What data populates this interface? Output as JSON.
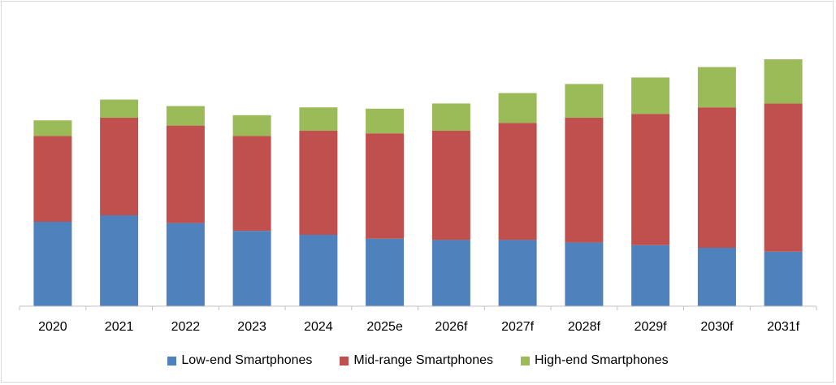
{
  "chart_data": {
    "type": "bar",
    "stacked": true,
    "title": "",
    "xlabel": "",
    "ylabel": "",
    "ylim": [
      0,
      100
    ],
    "categories": [
      "2020",
      "2021",
      "2022",
      "2023",
      "2024",
      "2025e",
      "2026f",
      "2027f",
      "2028f",
      "2029f",
      "2030f",
      "2031f"
    ],
    "series": [
      {
        "name": "Low-end Smartphones",
        "color": "#4f81bd",
        "values": [
          32.5,
          35.0,
          32.0,
          29.0,
          27.5,
          26.0,
          25.5,
          25.5,
          24.5,
          23.5,
          22.5,
          21.0
        ]
      },
      {
        "name": "Mid-range Smartphones",
        "color": "#c0504d",
        "values": [
          33.0,
          37.5,
          37.5,
          36.5,
          40.0,
          40.5,
          42.0,
          45.0,
          48.0,
          50.5,
          54.0,
          57.0
        ]
      },
      {
        "name": "High-end Smartphones",
        "color": "#9bbb59",
        "values": [
          6.0,
          7.0,
          7.5,
          8.0,
          9.0,
          9.5,
          10.5,
          11.5,
          13.0,
          14.0,
          15.5,
          17.0
        ]
      }
    ],
    "grid": false,
    "legend_position": "bottom-center"
  }
}
